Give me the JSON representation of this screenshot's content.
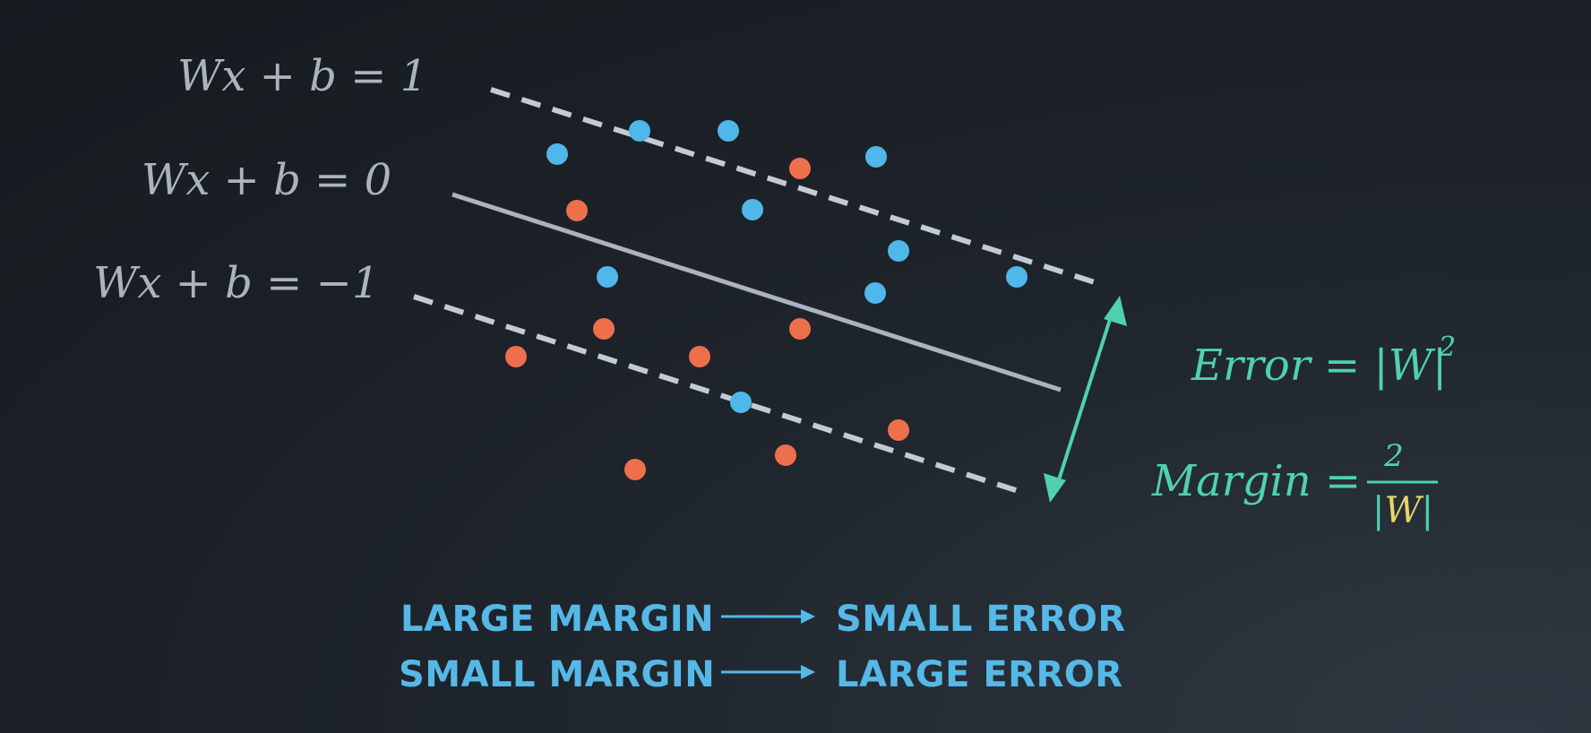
{
  "lines": {
    "upper_label": "Wx + b = 1",
    "middle_label": "Wx + b = 0",
    "lower_label": "Wx + b = −1"
  },
  "formulas": {
    "error_lhs": "Error = ",
    "error_rhs": "|W|",
    "error_exp": "2",
    "margin_lhs": "Margin = ",
    "margin_num": "2",
    "margin_bar_left": "|",
    "margin_W": "W",
    "margin_bar_right": "|"
  },
  "captions": {
    "row1_left": "LARGE MARGIN",
    "row1_right": "SMALL ERROR",
    "row2_left": "SMALL MARGIN",
    "row2_right": "LARGE ERROR"
  },
  "colors": {
    "blue_point": "#4fb7ea",
    "orange_point": "#ee6f4c",
    "line": "#aab3bf",
    "label": "#aab3bf",
    "formula": "#4fd1b0",
    "highlight": "#e8d56a",
    "caption": "#56b8e6"
  }
}
